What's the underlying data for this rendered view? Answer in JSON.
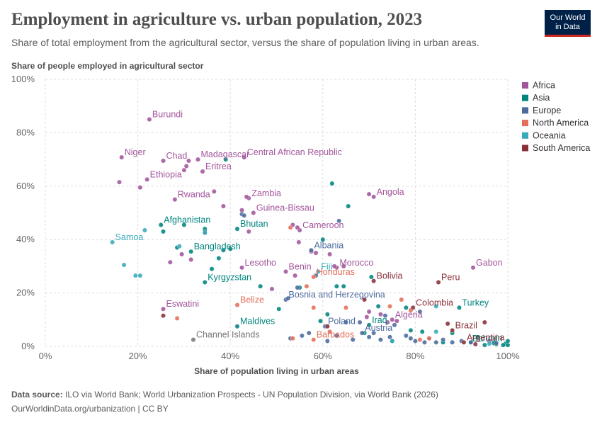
{
  "title": "Employment in agriculture vs. urban population, 2023",
  "subtitle": "Share of total employment from the agricultural sector, versus the share of population living in urban areas.",
  "logo": {
    "line1": "Our World",
    "line2": "in Data"
  },
  "footer": {
    "source_label": "Data source:",
    "source_text": " ILO via World Bank; World Urbanization Prospects - UN Population Division, via World Bank (2026)",
    "url": "OurWorldinData.org/urbanization | CC BY"
  },
  "colors": {
    "Africa": "#a2559c",
    "Asia": "#00847e",
    "Europe": "#4c6a9c",
    "North America": "#e56e5a",
    "Oceania": "#38aaba",
    "South America": "#883039"
  },
  "chart_data": {
    "type": "scatter",
    "title": "Employment in agriculture vs. urban population, 2023",
    "xlabel": "Share of population living in urban areas",
    "ylabel": "Share of people employed in agricultural sector",
    "xlim": [
      0,
      100
    ],
    "ylim": [
      0,
      100
    ],
    "x_ticks": [
      "0%",
      "20%",
      "40%",
      "60%",
      "80%",
      "100%"
    ],
    "y_ticks": [
      "0%",
      "20%",
      "40%",
      "60%",
      "80%",
      "100%"
    ],
    "grid": true,
    "legend": {
      "placement": "right",
      "entries": [
        "Africa",
        "Asia",
        "Europe",
        "North America",
        "Oceania",
        "South America"
      ]
    },
    "series": [
      {
        "name": "Africa",
        "points": [
          {
            "x": 22.5,
            "y": 85,
            "label": "Burundi"
          },
          {
            "x": 16.5,
            "y": 70.8,
            "label": "Niger"
          },
          {
            "x": 25.5,
            "y": 69.5,
            "label": "Chad"
          },
          {
            "x": 33,
            "y": 70,
            "label": "Madagascar"
          },
          {
            "x": 43,
            "y": 70.8,
            "label": "Central African Republic"
          },
          {
            "x": 22,
            "y": 62.5,
            "label": "Ethiopia"
          },
          {
            "x": 34,
            "y": 65.5,
            "label": "Eritrea"
          },
          {
            "x": 28,
            "y": 55,
            "label": "Rwanda"
          },
          {
            "x": 44,
            "y": 55.5,
            "label": "Zambia"
          },
          {
            "x": 45,
            "y": 50,
            "label": "Guinea-Bissau"
          },
          {
            "x": 71,
            "y": 56,
            "label": "Angola"
          },
          {
            "x": 55,
            "y": 43.5,
            "label": "Cameroon"
          },
          {
            "x": 42.5,
            "y": 29.5,
            "label": "Lesotho"
          },
          {
            "x": 52,
            "y": 28,
            "label": "Benin"
          },
          {
            "x": 63,
            "y": 29.5,
            "label": "Morocco"
          },
          {
            "x": 92.5,
            "y": 29.5,
            "label": "Gabon"
          },
          {
            "x": 25.5,
            "y": 14,
            "label": "Eswatini"
          },
          {
            "x": 75,
            "y": 10,
            "label": "Algeria"
          },
          {
            "x": 16,
            "y": 61.5
          },
          {
            "x": 20.5,
            "y": 59.5
          },
          {
            "x": 30,
            "y": 66
          },
          {
            "x": 31,
            "y": 69.5
          },
          {
            "x": 30.5,
            "y": 67.5
          },
          {
            "x": 36.5,
            "y": 58
          },
          {
            "x": 38.5,
            "y": 52.5
          },
          {
            "x": 43.5,
            "y": 56
          },
          {
            "x": 42.5,
            "y": 51
          },
          {
            "x": 44,
            "y": 43
          },
          {
            "x": 53.5,
            "y": 45.5
          },
          {
            "x": 54.5,
            "y": 44.5
          },
          {
            "x": 54.8,
            "y": 39
          },
          {
            "x": 57.5,
            "y": 35.5
          },
          {
            "x": 58.5,
            "y": 35
          },
          {
            "x": 61.5,
            "y": 34.5
          },
          {
            "x": 70,
            "y": 57
          },
          {
            "x": 27,
            "y": 31.5
          },
          {
            "x": 29.5,
            "y": 34.5
          },
          {
            "x": 31.5,
            "y": 32.5
          },
          {
            "x": 34.5,
            "y": 42.5
          },
          {
            "x": 49,
            "y": 21.5
          },
          {
            "x": 54,
            "y": 26.5
          },
          {
            "x": 62.5,
            "y": 30
          },
          {
            "x": 64.5,
            "y": 30
          },
          {
            "x": 70,
            "y": 13
          },
          {
            "x": 72.5,
            "y": 12
          },
          {
            "x": 74,
            "y": 9
          },
          {
            "x": 76,
            "y": 9.5
          },
          {
            "x": 96,
            "y": 2
          },
          {
            "x": 69.5,
            "y": 11
          }
        ]
      },
      {
        "name": "Asia",
        "points": [
          {
            "x": 25,
            "y": 45.5,
            "label": "Afghanistan"
          },
          {
            "x": 41.5,
            "y": 44,
            "label": "Bhutan"
          },
          {
            "x": 31.5,
            "y": 35.5,
            "label": "Bangladesh"
          },
          {
            "x": 34.5,
            "y": 24,
            "label": "Kyrgyzstan"
          },
          {
            "x": 41.5,
            "y": 7.5,
            "label": "Maldives"
          },
          {
            "x": 70,
            "y": 8,
            "label": "Iraq"
          },
          {
            "x": 89.5,
            "y": 14.5,
            "label": "Turkey"
          },
          {
            "x": 99.5,
            "y": 1,
            "label": "Bahrain"
          },
          {
            "x": 25.5,
            "y": 43
          },
          {
            "x": 28.5,
            "y": 37
          },
          {
            "x": 30,
            "y": 45.5
          },
          {
            "x": 34.5,
            "y": 44
          },
          {
            "x": 34.5,
            "y": 43
          },
          {
            "x": 38.5,
            "y": 36
          },
          {
            "x": 40,
            "y": 36.5
          },
          {
            "x": 36,
            "y": 29
          },
          {
            "x": 37.5,
            "y": 33
          },
          {
            "x": 39,
            "y": 70
          },
          {
            "x": 46.5,
            "y": 22.5
          },
          {
            "x": 50.5,
            "y": 14
          },
          {
            "x": 60,
            "y": 40
          },
          {
            "x": 62,
            "y": 61
          },
          {
            "x": 65.5,
            "y": 52.5
          },
          {
            "x": 70.5,
            "y": 26
          },
          {
            "x": 61,
            "y": 12
          },
          {
            "x": 59.5,
            "y": 9.5
          },
          {
            "x": 69,
            "y": 5
          },
          {
            "x": 72,
            "y": 15
          },
          {
            "x": 75,
            "y": 2
          },
          {
            "x": 79,
            "y": 6
          },
          {
            "x": 81.5,
            "y": 5.5
          },
          {
            "x": 88,
            "y": 5
          },
          {
            "x": 92,
            "y": 1.5
          },
          {
            "x": 95,
            "y": 0.5
          },
          {
            "x": 97.5,
            "y": 0.8
          },
          {
            "x": 99,
            "y": 0.5
          },
          {
            "x": 100,
            "y": 0.5
          },
          {
            "x": 100,
            "y": 2
          },
          {
            "x": 97,
            "y": 1.2
          },
          {
            "x": 93.5,
            "y": 3.5
          },
          {
            "x": 86,
            "y": 1.5
          },
          {
            "x": 78,
            "y": 14.5
          },
          {
            "x": 63,
            "y": 22.5
          },
          {
            "x": 64.5,
            "y": 22.5
          },
          {
            "x": 55,
            "y": 22
          }
        ]
      },
      {
        "name": "Europe",
        "points": [
          {
            "x": 57.5,
            "y": 36,
            "label": "Albania"
          },
          {
            "x": 52,
            "y": 17.5,
            "label": "Bosnia and Herzegovina"
          },
          {
            "x": 60.5,
            "y": 7.5,
            "label": "Poland"
          },
          {
            "x": 68.5,
            "y": 5,
            "label": "Austria"
          },
          {
            "x": 42.5,
            "y": 49.5
          },
          {
            "x": 43,
            "y": 49
          },
          {
            "x": 52.5,
            "y": 18
          },
          {
            "x": 54.5,
            "y": 22
          },
          {
            "x": 63.5,
            "y": 47
          },
          {
            "x": 53,
            "y": 3
          },
          {
            "x": 55.5,
            "y": 4
          },
          {
            "x": 57,
            "y": 5
          },
          {
            "x": 61,
            "y": 2
          },
          {
            "x": 63,
            "y": 4
          },
          {
            "x": 66.5,
            "y": 2.5
          },
          {
            "x": 68,
            "y": 9
          },
          {
            "x": 70,
            "y": 3.5
          },
          {
            "x": 71,
            "y": 5
          },
          {
            "x": 72.5,
            "y": 2.5
          },
          {
            "x": 74.5,
            "y": 3.5
          },
          {
            "x": 75.5,
            "y": 8
          },
          {
            "x": 79,
            "y": 3
          },
          {
            "x": 80,
            "y": 2
          },
          {
            "x": 81,
            "y": 13
          },
          {
            "x": 82,
            "y": 1.5
          },
          {
            "x": 83,
            "y": 3
          },
          {
            "x": 84.5,
            "y": 1.5
          },
          {
            "x": 86,
            "y": 2.5
          },
          {
            "x": 88,
            "y": 1.5
          },
          {
            "x": 90,
            "y": 2
          },
          {
            "x": 92,
            "y": 1.5
          },
          {
            "x": 97.5,
            "y": 1.2
          },
          {
            "x": 73.5,
            "y": 11.5
          },
          {
            "x": 78,
            "y": 4
          },
          {
            "x": 65,
            "y": 9
          },
          {
            "x": 58.5,
            "y": 26.5
          }
        ]
      },
      {
        "name": "North America",
        "points": [
          {
            "x": 41.5,
            "y": 15.5,
            "label": "Belize"
          },
          {
            "x": 58,
            "y": 26,
            "label": "Honduras"
          },
          {
            "x": 58,
            "y": 2.5,
            "label": "Barbados"
          },
          {
            "x": 28.5,
            "y": 10.5
          },
          {
            "x": 53,
            "y": 44.5
          },
          {
            "x": 53.5,
            "y": 3
          },
          {
            "x": 58,
            "y": 14.5
          },
          {
            "x": 56.5,
            "y": 22.5
          },
          {
            "x": 61.5,
            "y": 5.5
          },
          {
            "x": 65,
            "y": 14.5
          },
          {
            "x": 74.5,
            "y": 15
          },
          {
            "x": 77,
            "y": 17.5
          },
          {
            "x": 79,
            "y": 13.5
          },
          {
            "x": 81,
            "y": 2.5
          },
          {
            "x": 83,
            "y": 3
          }
        ]
      },
      {
        "name": "Oceania",
        "points": [
          {
            "x": 14.5,
            "y": 39,
            "label": "Samoa"
          },
          {
            "x": 59,
            "y": 28,
            "label": "Fiji"
          },
          {
            "x": 17,
            "y": 30.5
          },
          {
            "x": 19.5,
            "y": 26.5
          },
          {
            "x": 20.5,
            "y": 26.5
          },
          {
            "x": 21.5,
            "y": 43.5
          },
          {
            "x": 29,
            "y": 37.5
          },
          {
            "x": 34.5,
            "y": 42.5
          },
          {
            "x": 75,
            "y": 2
          },
          {
            "x": 84.5,
            "y": 15
          },
          {
            "x": 84.5,
            "y": 5.5
          },
          {
            "x": 96,
            "y": 1
          }
        ]
      },
      {
        "name": "South America",
        "points": [
          {
            "x": 71,
            "y": 24.5,
            "label": "Bolivia"
          },
          {
            "x": 85,
            "y": 24,
            "label": "Peru"
          },
          {
            "x": 79.5,
            "y": 14.5,
            "label": "Colombia"
          },
          {
            "x": 88,
            "y": 6,
            "label": "Brazil"
          },
          {
            "x": 90.5,
            "y": 1.5,
            "label": "Argentina"
          },
          {
            "x": 25.5,
            "y": 11.5
          },
          {
            "x": 61,
            "y": 7.5
          },
          {
            "x": 69,
            "y": 17.5
          },
          {
            "x": 87,
            "y": 8.5
          },
          {
            "x": 95,
            "y": 9
          },
          {
            "x": 93,
            "y": 0.8
          }
        ]
      },
      {
        "name": "",
        "points": [
          {
            "x": 32,
            "y": 2.5,
            "label": "Channel Islands"
          }
        ]
      }
    ]
  }
}
